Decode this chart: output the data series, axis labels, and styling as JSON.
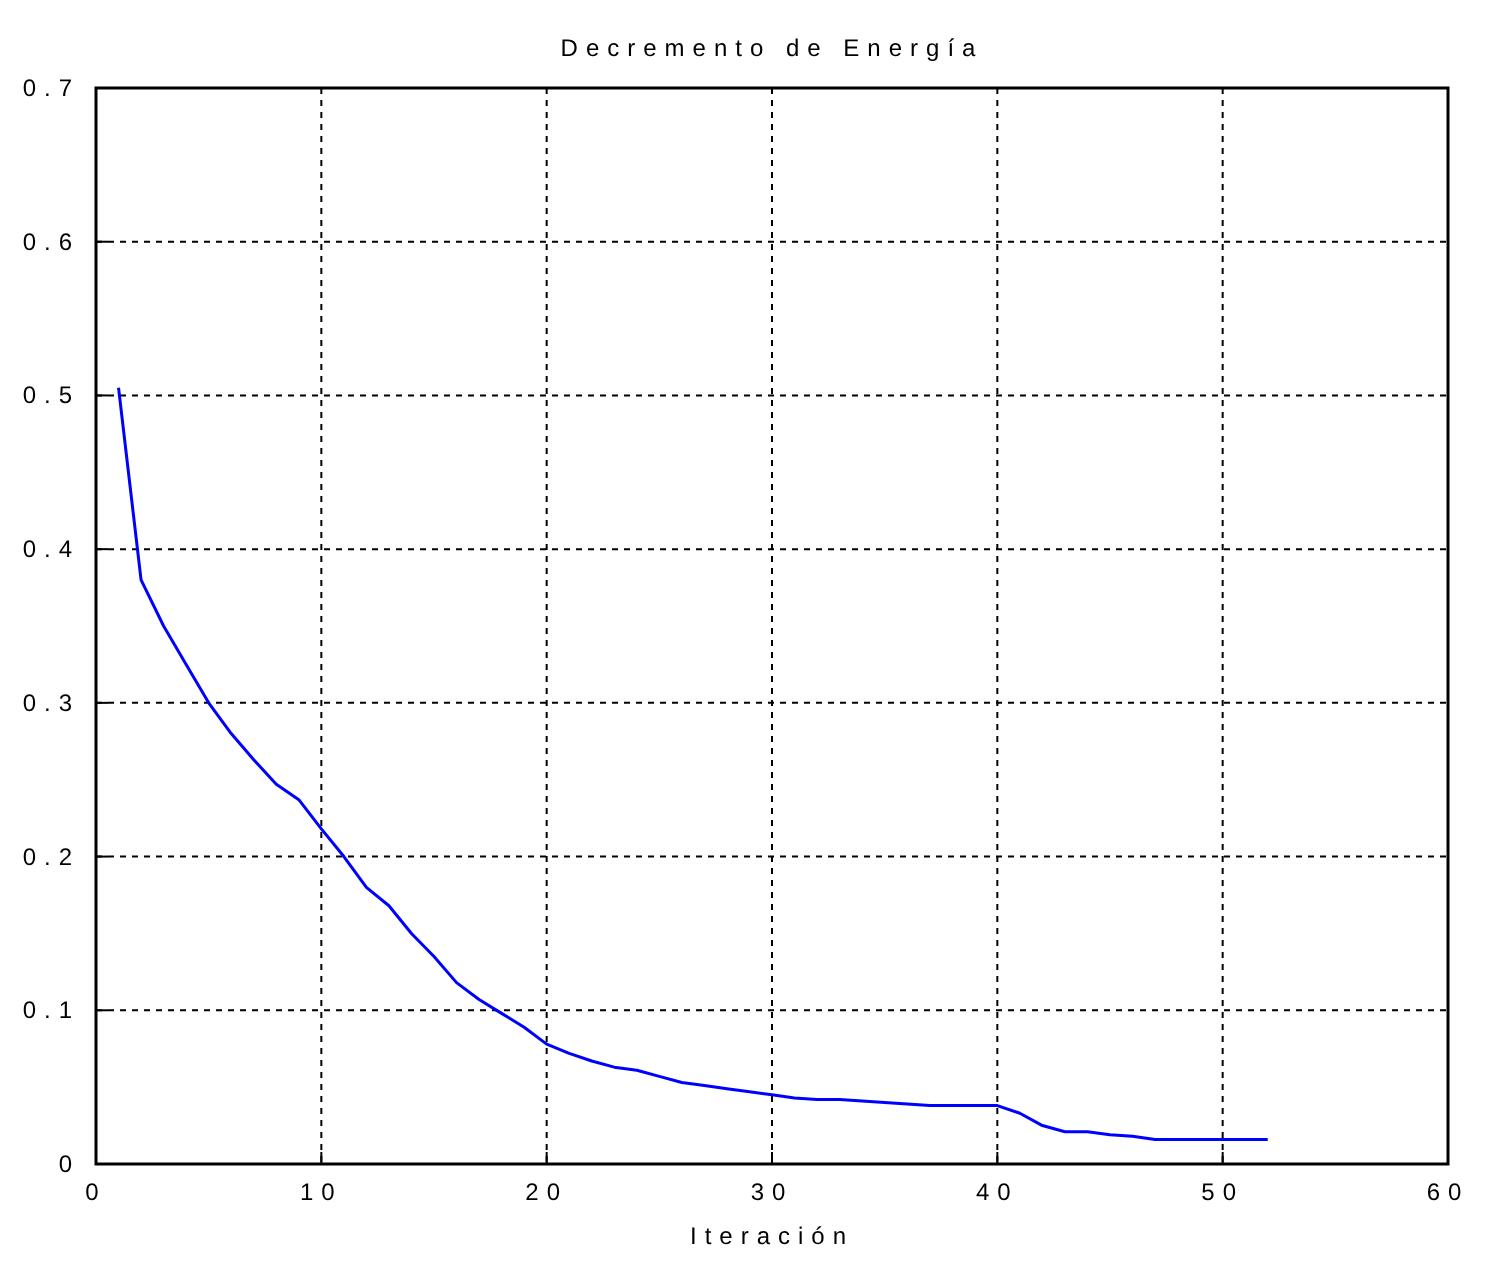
{
  "chart_data": {
    "type": "line",
    "title": "Decremento de Energía",
    "xlabel": "Iteración",
    "x": [
      1,
      2,
      3,
      4,
      5,
      6,
      7,
      8,
      9,
      10,
      11,
      12,
      13,
      14,
      15,
      16,
      17,
      18,
      19,
      20,
      21,
      22,
      23,
      24,
      25,
      26,
      27,
      28,
      29,
      30,
      31,
      32,
      33,
      34,
      35,
      36,
      37,
      38,
      39,
      40,
      41,
      42,
      43,
      44,
      45,
      46,
      47,
      48,
      49,
      50,
      51,
      52
    ],
    "series": [
      {
        "color": "#0000ff",
        "values": [
          0.505,
          0.38,
          0.35,
          0.325,
          0.3,
          0.28,
          0.263,
          0.247,
          0.237,
          0.218,
          0.2,
          0.18,
          0.168,
          0.15,
          0.135,
          0.118,
          0.107,
          0.098,
          0.089,
          0.078,
          0.072,
          0.067,
          0.063,
          0.061,
          0.057,
          0.053,
          0.051,
          0.049,
          0.047,
          0.045,
          0.043,
          0.042,
          0.042,
          0.041,
          0.04,
          0.039,
          0.038,
          0.038,
          0.038,
          0.038,
          0.033,
          0.025,
          0.021,
          0.021,
          0.019,
          0.018,
          0.016,
          0.016,
          0.016,
          0.016,
          0.016,
          0.016
        ]
      }
    ],
    "xlim": [
      0,
      60
    ],
    "xticks": [
      0,
      10,
      20,
      30,
      40,
      50,
      60
    ],
    "ylim": [
      0,
      0.7
    ],
    "yticks": [
      0,
      0.1,
      0.2,
      0.3,
      0.4,
      0.5,
      0.6,
      0.7
    ],
    "grid": true,
    "marker": "none",
    "line_style": "solid"
  }
}
